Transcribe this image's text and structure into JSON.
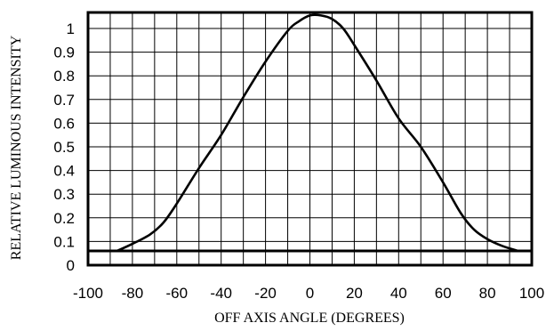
{
  "chart_data": {
    "type": "line",
    "xlabel": "OFF AXIS ANGLE (DEGREES)",
    "ylabel": "RELATIVE LUMINOUS INTENSITY",
    "xlim": [
      -100,
      100
    ],
    "ylim": [
      0,
      1.05
    ],
    "x_ticks": [
      -100,
      -80,
      -60,
      -40,
      -20,
      0,
      20,
      40,
      60,
      80,
      100
    ],
    "y_ticks": [
      0,
      0.1,
      0.2,
      0.3,
      0.4,
      0.5,
      0.6,
      0.7,
      0.8,
      0.9,
      1
    ],
    "x_tick_labels": [
      "-100",
      "-80",
      "-60",
      "-40",
      "-20",
      "0",
      "20",
      "40",
      "60",
      "80",
      "100"
    ],
    "y_tick_labels": [
      "0",
      "0.1",
      "0.2",
      "0.3",
      "0.4",
      "0.5",
      "0.6",
      "0.7",
      "0.8",
      "0.9",
      "1"
    ],
    "vertical_grid_step": 10,
    "horizontal_grid_step": 0.1,
    "grid": true,
    "baseline_y": 0.06,
    "series": [
      {
        "x": [
          -87,
          -80,
          -72,
          -66,
          -60,
          -50,
          -40,
          -30,
          -20,
          -10,
          -5,
          0,
          5,
          10,
          15,
          20,
          30,
          40,
          50,
          60,
          68,
          74,
          80,
          87,
          94
        ],
        "y": [
          0.06,
          0.09,
          0.13,
          0.18,
          0.26,
          0.41,
          0.55,
          0.71,
          0.86,
          0.99,
          1.03,
          1.055,
          1.055,
          1.04,
          1.0,
          0.93,
          0.78,
          0.62,
          0.5,
          0.35,
          0.22,
          0.15,
          0.11,
          0.08,
          0.06
        ]
      }
    ],
    "colors": {
      "line": "#000000",
      "grid": "#000000",
      "frame": "#000000"
    }
  }
}
